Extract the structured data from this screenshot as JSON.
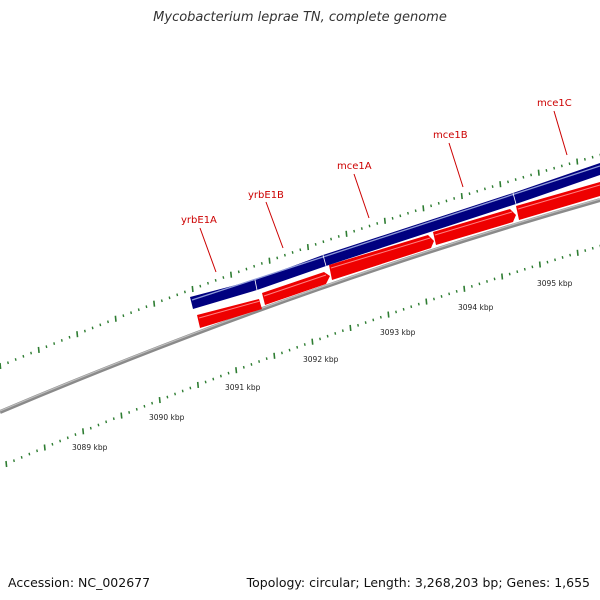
{
  "header": {
    "title": "Mycobacterium leprae TN, complete genome"
  },
  "footer": {
    "accession": "Accession: NC_002677",
    "summary": "Topology: circular; Length: 3,268,203 bp; Genes: 1,655"
  },
  "colors": {
    "forward_gene": "#000080",
    "reverse_gene": "#ee0000",
    "backbone": "#808080",
    "tick": "#2e7d32",
    "label": "#cc0000"
  },
  "genes": [
    {
      "name": "yrbE1A",
      "strand": "forward"
    },
    {
      "name": "yrbE1B",
      "strand": "forward"
    },
    {
      "name": "mce1A",
      "strand": "forward"
    },
    {
      "name": "mce1B",
      "strand": "forward"
    },
    {
      "name": "mce1C",
      "strand": "forward"
    }
  ],
  "scale": {
    "labels": [
      "3089 kbp",
      "3090 kbp",
      "3091 kbp",
      "3092 kbp",
      "3093 kbp",
      "3094 kbp",
      "3095 kbp"
    ]
  }
}
